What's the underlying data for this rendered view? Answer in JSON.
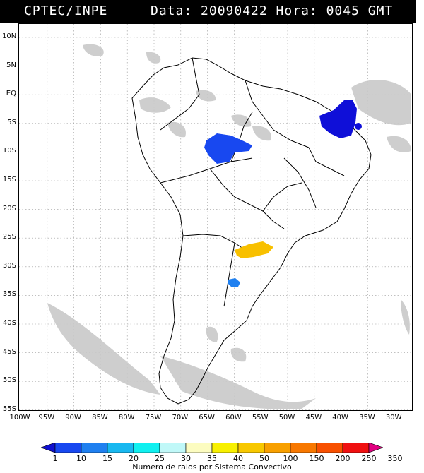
{
  "header": {
    "agency": "CPTEC/INPE",
    "datetime": "Data: 20090422 Hora: 0045 GMT"
  },
  "map": {
    "latitude_labels": [
      "10N",
      "5N",
      "EQ",
      "5S",
      "10S",
      "15S",
      "20S",
      "25S",
      "30S",
      "35S",
      "40S",
      "45S",
      "50S",
      "55S"
    ],
    "longitude_labels": [
      "100W",
      "95W",
      "90W",
      "85W",
      "80W",
      "75W",
      "70W",
      "65W",
      "60W",
      "55W",
      "50W",
      "45W",
      "40W",
      "35W",
      "30W"
    ]
  },
  "legend": {
    "title": "Numero de raios por Sistema Convectivo",
    "ticks": [
      "1",
      "10",
      "15",
      "20",
      "25",
      "30",
      "35",
      "40",
      "50",
      "100",
      "150",
      "200",
      "250",
      "350"
    ],
    "colors": [
      "#1010d0",
      "#1848f0",
      "#1f80f0",
      "#18b8f0",
      "#10f0f0",
      "#c0f8f8",
      "#fcfcc0",
      "#f8f000",
      "#f8c800",
      "#f8a000",
      "#f87800",
      "#f85000",
      "#f01010",
      "#e00080"
    ]
  }
}
